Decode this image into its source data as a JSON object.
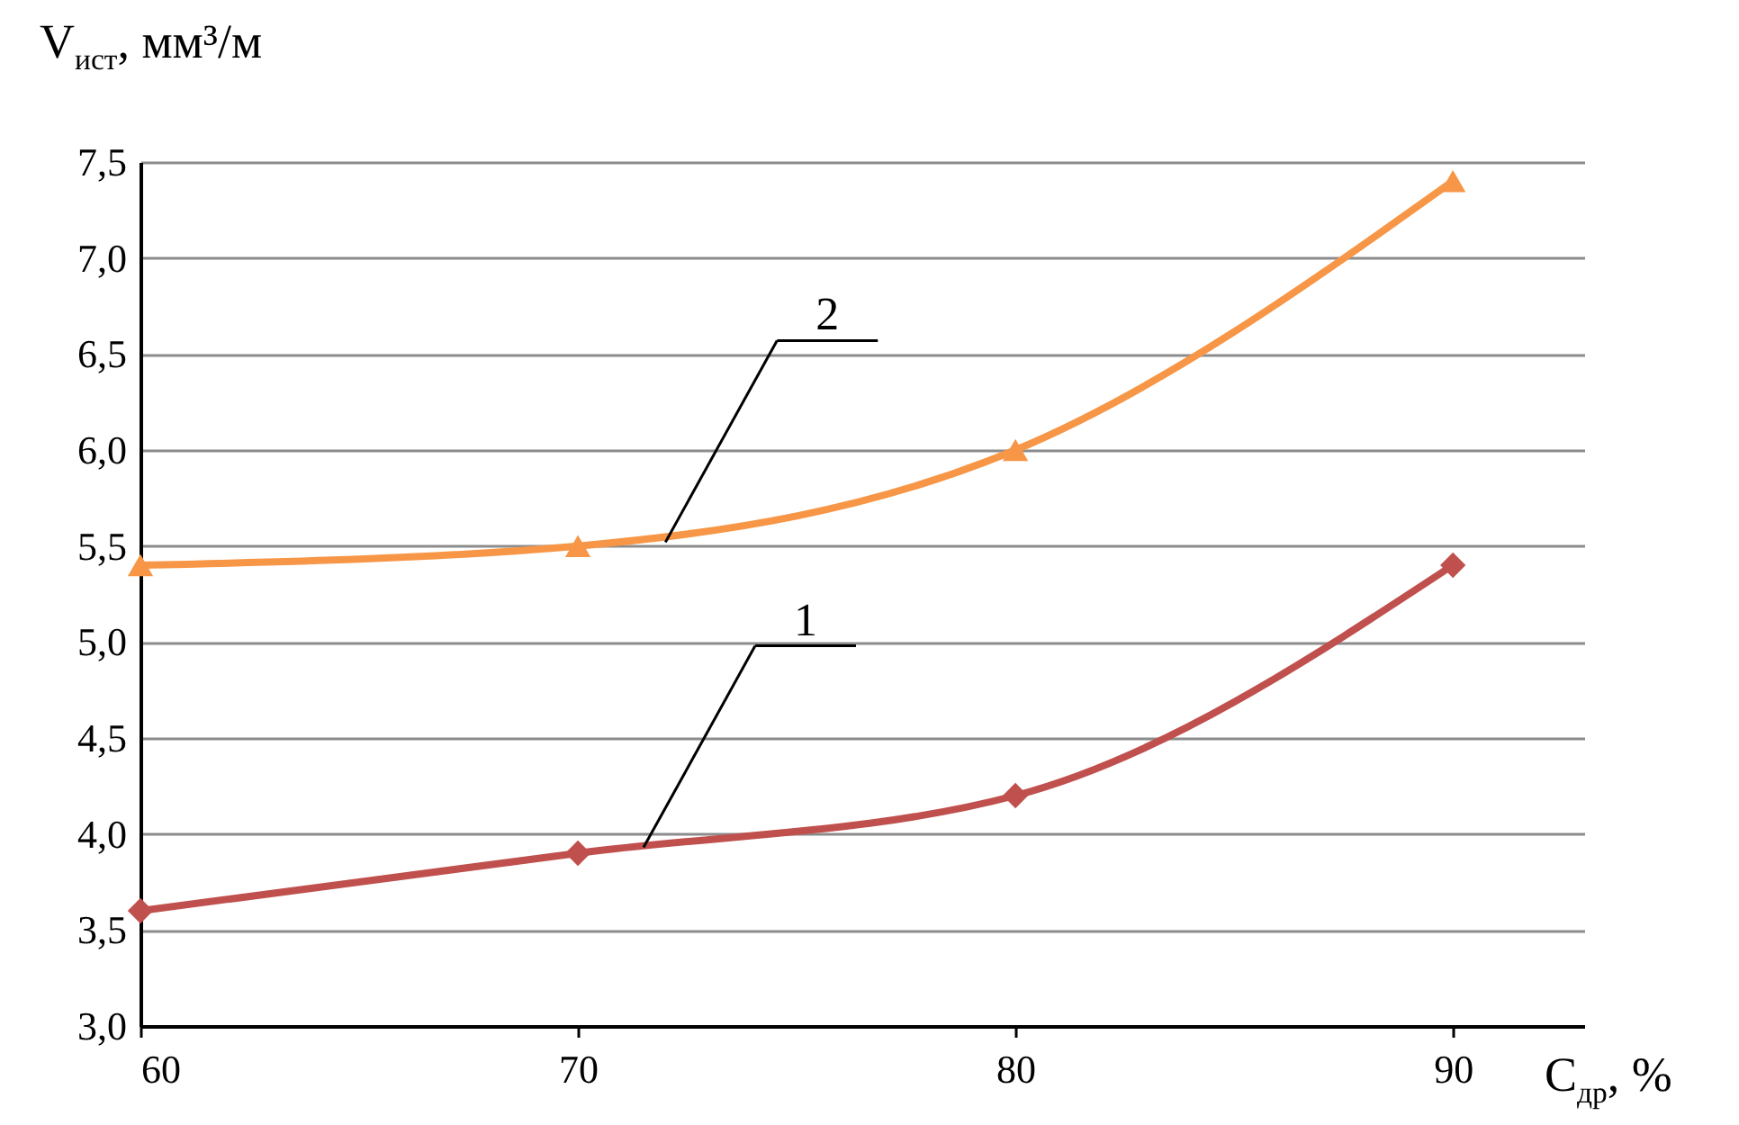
{
  "chart_data": {
    "type": "line",
    "xlabel": "C$_{др}$, %",
    "ylabel": "V$_{ист}$, мм³/м",
    "x": [
      60,
      70,
      80,
      90
    ],
    "series": [
      {
        "color": "#c0504d",
        "marker": "diamond",
        "values": [
          3.6,
          3.9,
          4.2,
          5.4
        ]
      },
      {
        "color": "#f79646",
        "marker": "triangle",
        "values": [
          5.4,
          5.5,
          6.0,
          7.4
        ]
      }
    ],
    "xlim": [
      60,
      93
    ],
    "xticks": [
      60,
      70,
      80,
      90
    ],
    "ylim": [
      3.0,
      7.5
    ],
    "yticks": [
      {
        "value": 3.0,
        "label": "3,0"
      },
      {
        "value": 3.5,
        "label": "3,5"
      },
      {
        "value": 4.0,
        "label": "4,0"
      },
      {
        "value": 4.5,
        "label": "4,5"
      },
      {
        "value": 5.0,
        "label": "5,0"
      },
      {
        "value": 5.5,
        "label": "5,5"
      },
      {
        "value": 6.0,
        "label": "6,0"
      },
      {
        "value": 6.5,
        "label": "6,5"
      },
      {
        "value": 7.0,
        "label": "7,0"
      },
      {
        "value": 7.5,
        "label": "7,5"
      }
    ],
    "grid": "y",
    "line_style": "solid",
    "annotations": [
      {
        "text": "1",
        "x": 71.5,
        "y": 3.93
      },
      {
        "text": "2",
        "x": 72,
        "y": 5.52
      }
    ]
  }
}
